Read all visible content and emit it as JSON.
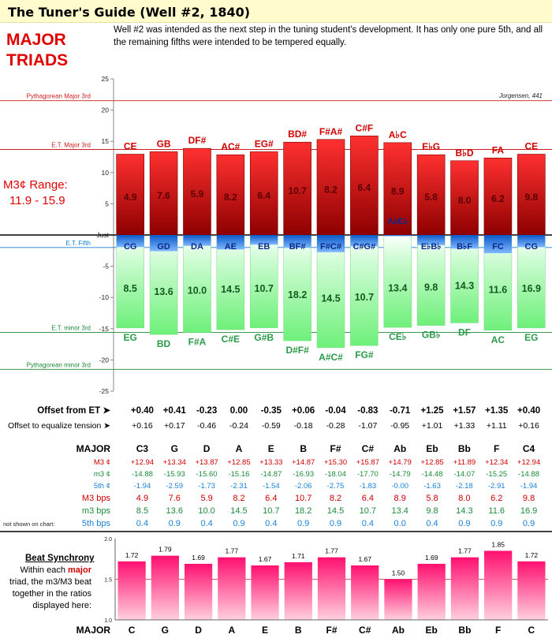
{
  "header": {
    "title": "The Tuner's Guide (Well #2, 1840)",
    "heading": "MAJOR TRIADS",
    "heading_l1": "MAJOR",
    "heading_l2": "TRIADS",
    "intro": "Well #2 was intended as the next step in the tuning student's development. It has only one pure 5th, and all the remaining fifths were intended to be tempered equally.",
    "range_label": "M3¢ Range:",
    "range_value": "11.9 - 15.9"
  },
  "colors": {
    "major": "#cc0000",
    "minor": "#1e8a3a",
    "fifth": "#1a7fd6",
    "sync": "#e8004a",
    "title_bg": "#fffbcc"
  },
  "chart_data": [
    {
      "type": "bar",
      "source": "Jorgensen, 441",
      "ylim": [
        -25,
        25
      ],
      "yticks": [
        "25",
        "20",
        "15",
        "10",
        "5",
        "Just",
        "-5",
        "-10",
        "-15",
        "-20",
        "-25"
      ],
      "reference_lines": [
        {
          "label": "Pythagorean Major 3rd",
          "value": 21.5
        },
        {
          "label": "E.T. Major 3rd",
          "value": 13.7
        },
        {
          "label": "E.T. Fifth",
          "value": -2.0
        },
        {
          "label": "E.T. minor 3rd",
          "value": -15.6
        },
        {
          "label": "Pythagorean minor 3rd",
          "value": -21.5
        }
      ],
      "categories": [
        "C3",
        "G",
        "D",
        "A",
        "E",
        "B",
        "F#",
        "C#",
        "Ab",
        "Eb",
        "Bb",
        "F",
        "C4"
      ],
      "major_labels": [
        "CE",
        "GB",
        "DF#",
        "AC#",
        "EG#",
        "BD#",
        "F#A#",
        "C#F",
        "A♭C",
        "E♭G",
        "B♭D",
        "FA",
        "CE"
      ],
      "fifth_labels": [
        "CG",
        "GD",
        "DA",
        "AE",
        "EB",
        "BF#",
        "F#C#",
        "C#G#",
        "A♭E♭",
        "E♭B♭",
        "B♭F",
        "FC",
        "CG"
      ],
      "minor_labels": [
        "EG",
        "BD",
        "F#A",
        "C#E",
        "G#B",
        "D#F#",
        "A#C#",
        "FG#",
        "CE♭",
        "GB♭",
        "DF",
        "AC",
        "EG"
      ],
      "series": [
        {
          "name": "M3 ¢",
          "values": [
            12.94,
            13.34,
            13.87,
            12.85,
            13.33,
            14.87,
            15.3,
            15.87,
            14.79,
            12.85,
            11.89,
            12.34,
            12.94
          ]
        },
        {
          "name": "m3 ¢",
          "values": [
            -14.88,
            -15.93,
            -15.6,
            -15.16,
            -14.87,
            -16.93,
            -18.04,
            -17.7,
            -14.79,
            -14.48,
            -14.07,
            -15.25,
            -14.88
          ]
        },
        {
          "name": "5th ¢",
          "values": [
            -1.94,
            -2.59,
            -1.73,
            -2.31,
            -1.54,
            -2.06,
            -2.75,
            -1.83,
            0.0,
            -1.63,
            -2.18,
            -2.91,
            -1.94
          ]
        }
      ],
      "major_bps": [
        "4.9",
        "7.6",
        "5.9",
        "8.2",
        "6.4",
        "10.7",
        "8.2",
        "6.4",
        "8.9",
        "5.8",
        "8.0",
        "6.2",
        "9.8"
      ],
      "minor_bps": [
        "8.5",
        "13.6",
        "10.0",
        "14.5",
        "10.7",
        "18.2",
        "14.5",
        "10.7",
        "13.4",
        "9.8",
        "14.3",
        "11.6",
        "16.9"
      ]
    },
    {
      "type": "bar",
      "title": "Beat Synchrony",
      "ylim": [
        1.0,
        2.0
      ],
      "yticks": [
        "2.0",
        "1.5",
        "1.0"
      ],
      "categories": [
        "C",
        "G",
        "D",
        "A",
        "E",
        "B",
        "F#",
        "C#",
        "Ab",
        "Eb",
        "Bb",
        "F",
        "C"
      ],
      "values": [
        1.72,
        1.79,
        1.69,
        1.77,
        1.67,
        1.71,
        1.77,
        1.67,
        1.5,
        1.69,
        1.77,
        1.85,
        1.72
      ]
    }
  ],
  "table": {
    "offset_label": "Offset from ET ➤",
    "offset": [
      "+0.40",
      "+0.41",
      "-0.23",
      "0.00",
      "-0.35",
      "+0.06",
      "-0.04",
      "-0.83",
      "-0.71",
      "+1.25",
      "+1.57",
      "+1.35",
      "+0.40"
    ],
    "eq_label": "Offset to equalize tension ➤",
    "eq": [
      "+0.16",
      "+0.17",
      "-0.46",
      "-0.24",
      "-0.59",
      "-0.18",
      "-0.28",
      "-1.07",
      "-0.95",
      "+1.01",
      "+1.33",
      "+1.11",
      "+0.16"
    ],
    "major_label": "MAJOR",
    "keys": [
      "C3",
      "G",
      "D",
      "A",
      "E",
      "B",
      "F#",
      "C#",
      "Ab",
      "Eb",
      "Bb",
      "F",
      "C4"
    ],
    "M3c_label": "M3 ¢",
    "M3c": [
      "+12.94",
      "+13.34",
      "+13.87",
      "+12.85",
      "+13.33",
      "+14.87",
      "+15.30",
      "+15.87",
      "+14.79",
      "+12.85",
      "+11.89",
      "+12.34",
      "+12.94"
    ],
    "m3c_label": "m3 ¢",
    "m3c": [
      "-14.88",
      "-15.93",
      "-15.60",
      "-15.16",
      "-14.87",
      "-16.93",
      "-18.04",
      "-17.70",
      "-14.79",
      "-14.48",
      "-14.07",
      "-15.25",
      "-14.88"
    ],
    "fifthc_label": "5th ¢",
    "fifthc": [
      "-1.94",
      "-2.59",
      "-1.73",
      "-2.31",
      "-1.54",
      "-2.06",
      "-2.75",
      "-1.83",
      "-0.00",
      "-1.63",
      "-2.18",
      "-2.91",
      "-1.94"
    ],
    "M3bps_label": "M3 bps",
    "M3bps": [
      "4.9",
      "7.6",
      "5.9",
      "8.2",
      "6.4",
      "10.7",
      "8.2",
      "6.4",
      "8.9",
      "5.8",
      "8.0",
      "6.2",
      "9.8"
    ],
    "m3bps_label": "m3 bps",
    "m3bps": [
      "8.5",
      "13.6",
      "10.0",
      "14.5",
      "10.7",
      "18.2",
      "14.5",
      "10.7",
      "13.4",
      "9.8",
      "14.3",
      "11.6",
      "16.9"
    ],
    "not_shown": "not shown on chart:",
    "fifthbps_label": "5th bps",
    "fifthbps": [
      "0.4",
      "0.9",
      "0.4",
      "0.9",
      "0.4",
      "0.9",
      "0.9",
      "0.4",
      "0.0",
      "0.4",
      "0.9",
      "0.9",
      "0.9"
    ]
  },
  "sync": {
    "title": "Beat Synchrony",
    "desc_pre": "Within each",
    "desc_em": "major",
    "desc_post": "triad, the m3/M3 beat together in the ratios displayed here:",
    "bottom_label": "MAJOR"
  }
}
